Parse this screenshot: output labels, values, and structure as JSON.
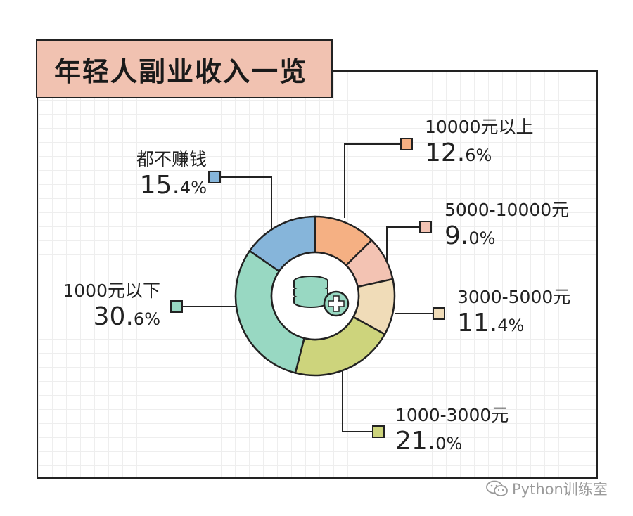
{
  "title": "年轻人副业收入一览",
  "watermark": "Python训练室",
  "chart_data": {
    "type": "pie",
    "subtype": "donut",
    "title": "年轻人副业收入一览",
    "categories": [
      "10000元以上",
      "5000-10000元",
      "3000-5000元",
      "1000-3000元",
      "1000元以下",
      "都不赚钱"
    ],
    "values": [
      12.6,
      9.0,
      11.4,
      21.0,
      30.6,
      15.4
    ],
    "labels": [
      {
        "name": "10000元以上",
        "big": "12.",
        "small": "6%"
      },
      {
        "name": "5000-10000元",
        "big": "9.",
        "small": "0%"
      },
      {
        "name": "3000-5000元",
        "big": "11.",
        "small": "4%"
      },
      {
        "name": "1000-3000元",
        "big": "21.",
        "small": "0%"
      },
      {
        "name": "1000元以下",
        "big": "30.",
        "small": "6%"
      },
      {
        "name": "都不赚钱",
        "big": "15.",
        "small": "4%"
      }
    ],
    "colors": [
      "#f5b083",
      "#f3c3b3",
      "#f0dcb8",
      "#cdd47c",
      "#98d8c2",
      "#86b5da"
    ],
    "center_icon": "coins-plus-icon"
  }
}
